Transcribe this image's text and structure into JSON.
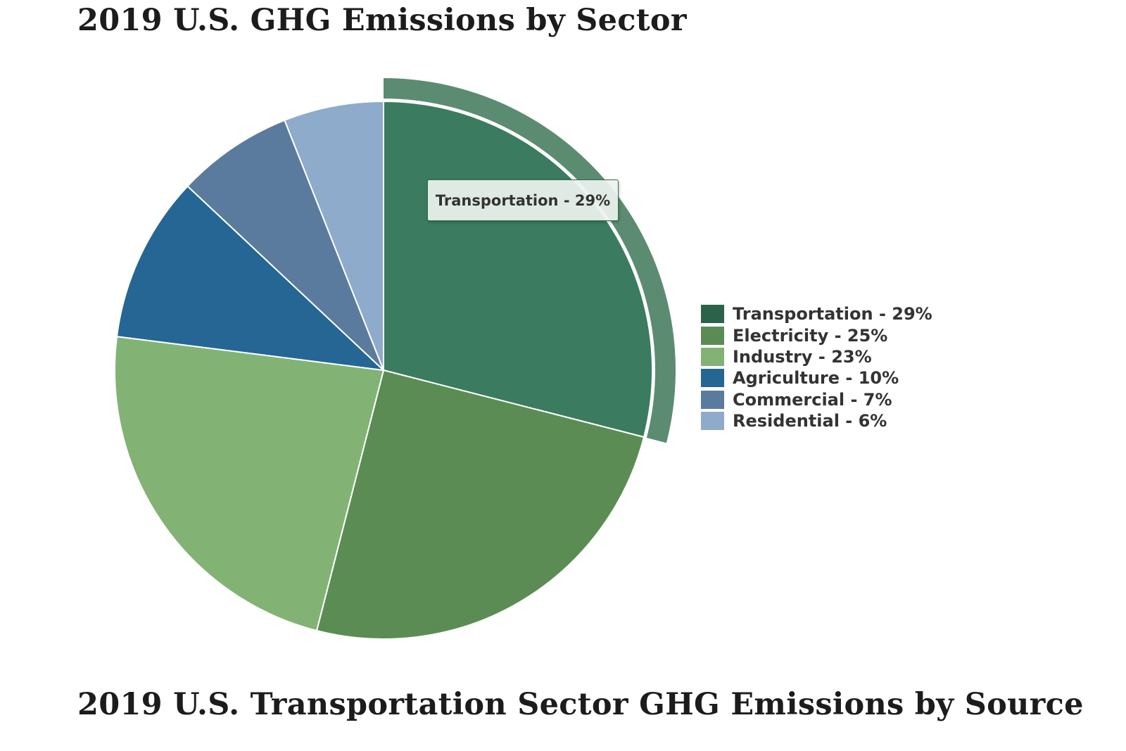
{
  "page": {
    "section_heading": "2019 U.S. Transportation Sector GHG Emissions by Source"
  },
  "chart_data": {
    "type": "pie",
    "title": "2019 U.S. GHG Emissions by Sector",
    "start": "12 o'clock",
    "direction": "clockwise",
    "categories": [
      "Transportation",
      "Electricity",
      "Industry",
      "Agriculture",
      "Commercial",
      "Residential"
    ],
    "values": [
      29,
      25,
      23,
      10,
      7,
      6
    ],
    "unit": "%",
    "labels": [
      "Transportation - 29%",
      "Electricity - 25%",
      "Industry - 23%",
      "Agriculture - 10%",
      "Commercial - 7%",
      "Residential - 6%"
    ],
    "colors": [
      "#3b7b5f",
      "#5b8c54",
      "#82b374",
      "#256694",
      "#5a7b9e",
      "#8eabcc"
    ],
    "legend_colors": [
      "#2a6349",
      "#5b8c54",
      "#82b374",
      "#256694",
      "#5a7b9e",
      "#8eabcc"
    ],
    "highlighted": {
      "category": "Transportation",
      "tooltip": "Transportation - 29%",
      "halo_color": "#5b8c72"
    },
    "legend_position": "right"
  }
}
